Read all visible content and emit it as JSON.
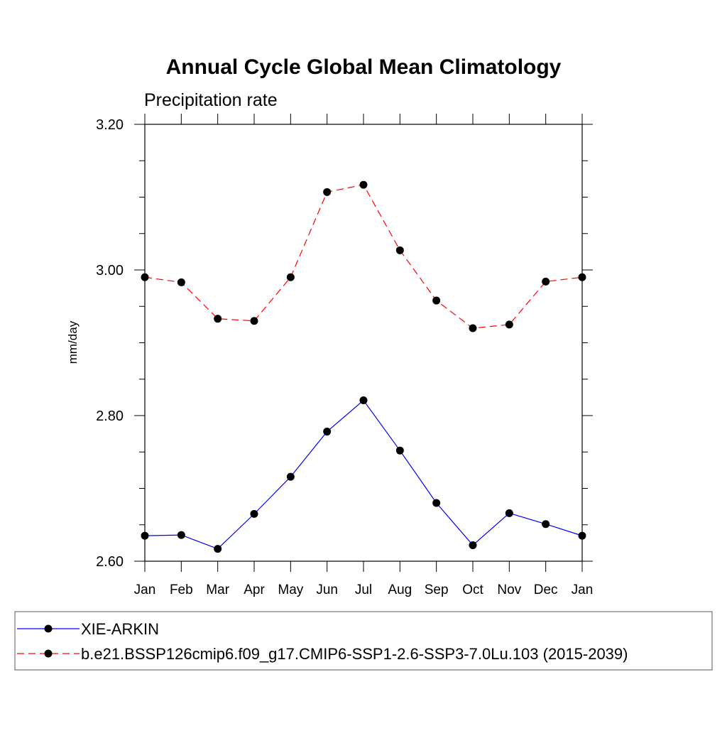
{
  "chart_data": {
    "type": "line",
    "title": "Annual Cycle Global Mean Climatology",
    "subtitle": "Precipitation rate",
    "xlabel": "",
    "ylabel": "mm/day",
    "categories": [
      "Jan",
      "Feb",
      "Mar",
      "Apr",
      "May",
      "Jun",
      "Jul",
      "Aug",
      "Sep",
      "Oct",
      "Nov",
      "Dec",
      "Jan"
    ],
    "ylim": [
      2.6,
      3.2
    ],
    "yticks": [
      "2.60",
      "2.80",
      "3.00",
      "3.20"
    ],
    "grid": false,
    "legend_position": "bottom",
    "series": [
      {
        "name": "XIE-ARKIN",
        "color": "#0000ff",
        "dash": "solid",
        "values": [
          2.635,
          2.636,
          2.617,
          2.665,
          2.716,
          2.778,
          2.821,
          2.752,
          2.68,
          2.622,
          2.666,
          2.651,
          2.635
        ]
      },
      {
        "name": "b.e21.BSSP126cmip6.f09_g17.CMIP6-SSP1-2.6-SSP3-7.0Lu.103 (2015-2039)",
        "color": "#ff0000",
        "dash": "dashed",
        "values": [
          2.99,
          2.983,
          2.933,
          2.93,
          2.99,
          3.107,
          3.117,
          3.027,
          2.958,
          2.92,
          2.925,
          2.984,
          2.99
        ]
      }
    ]
  }
}
